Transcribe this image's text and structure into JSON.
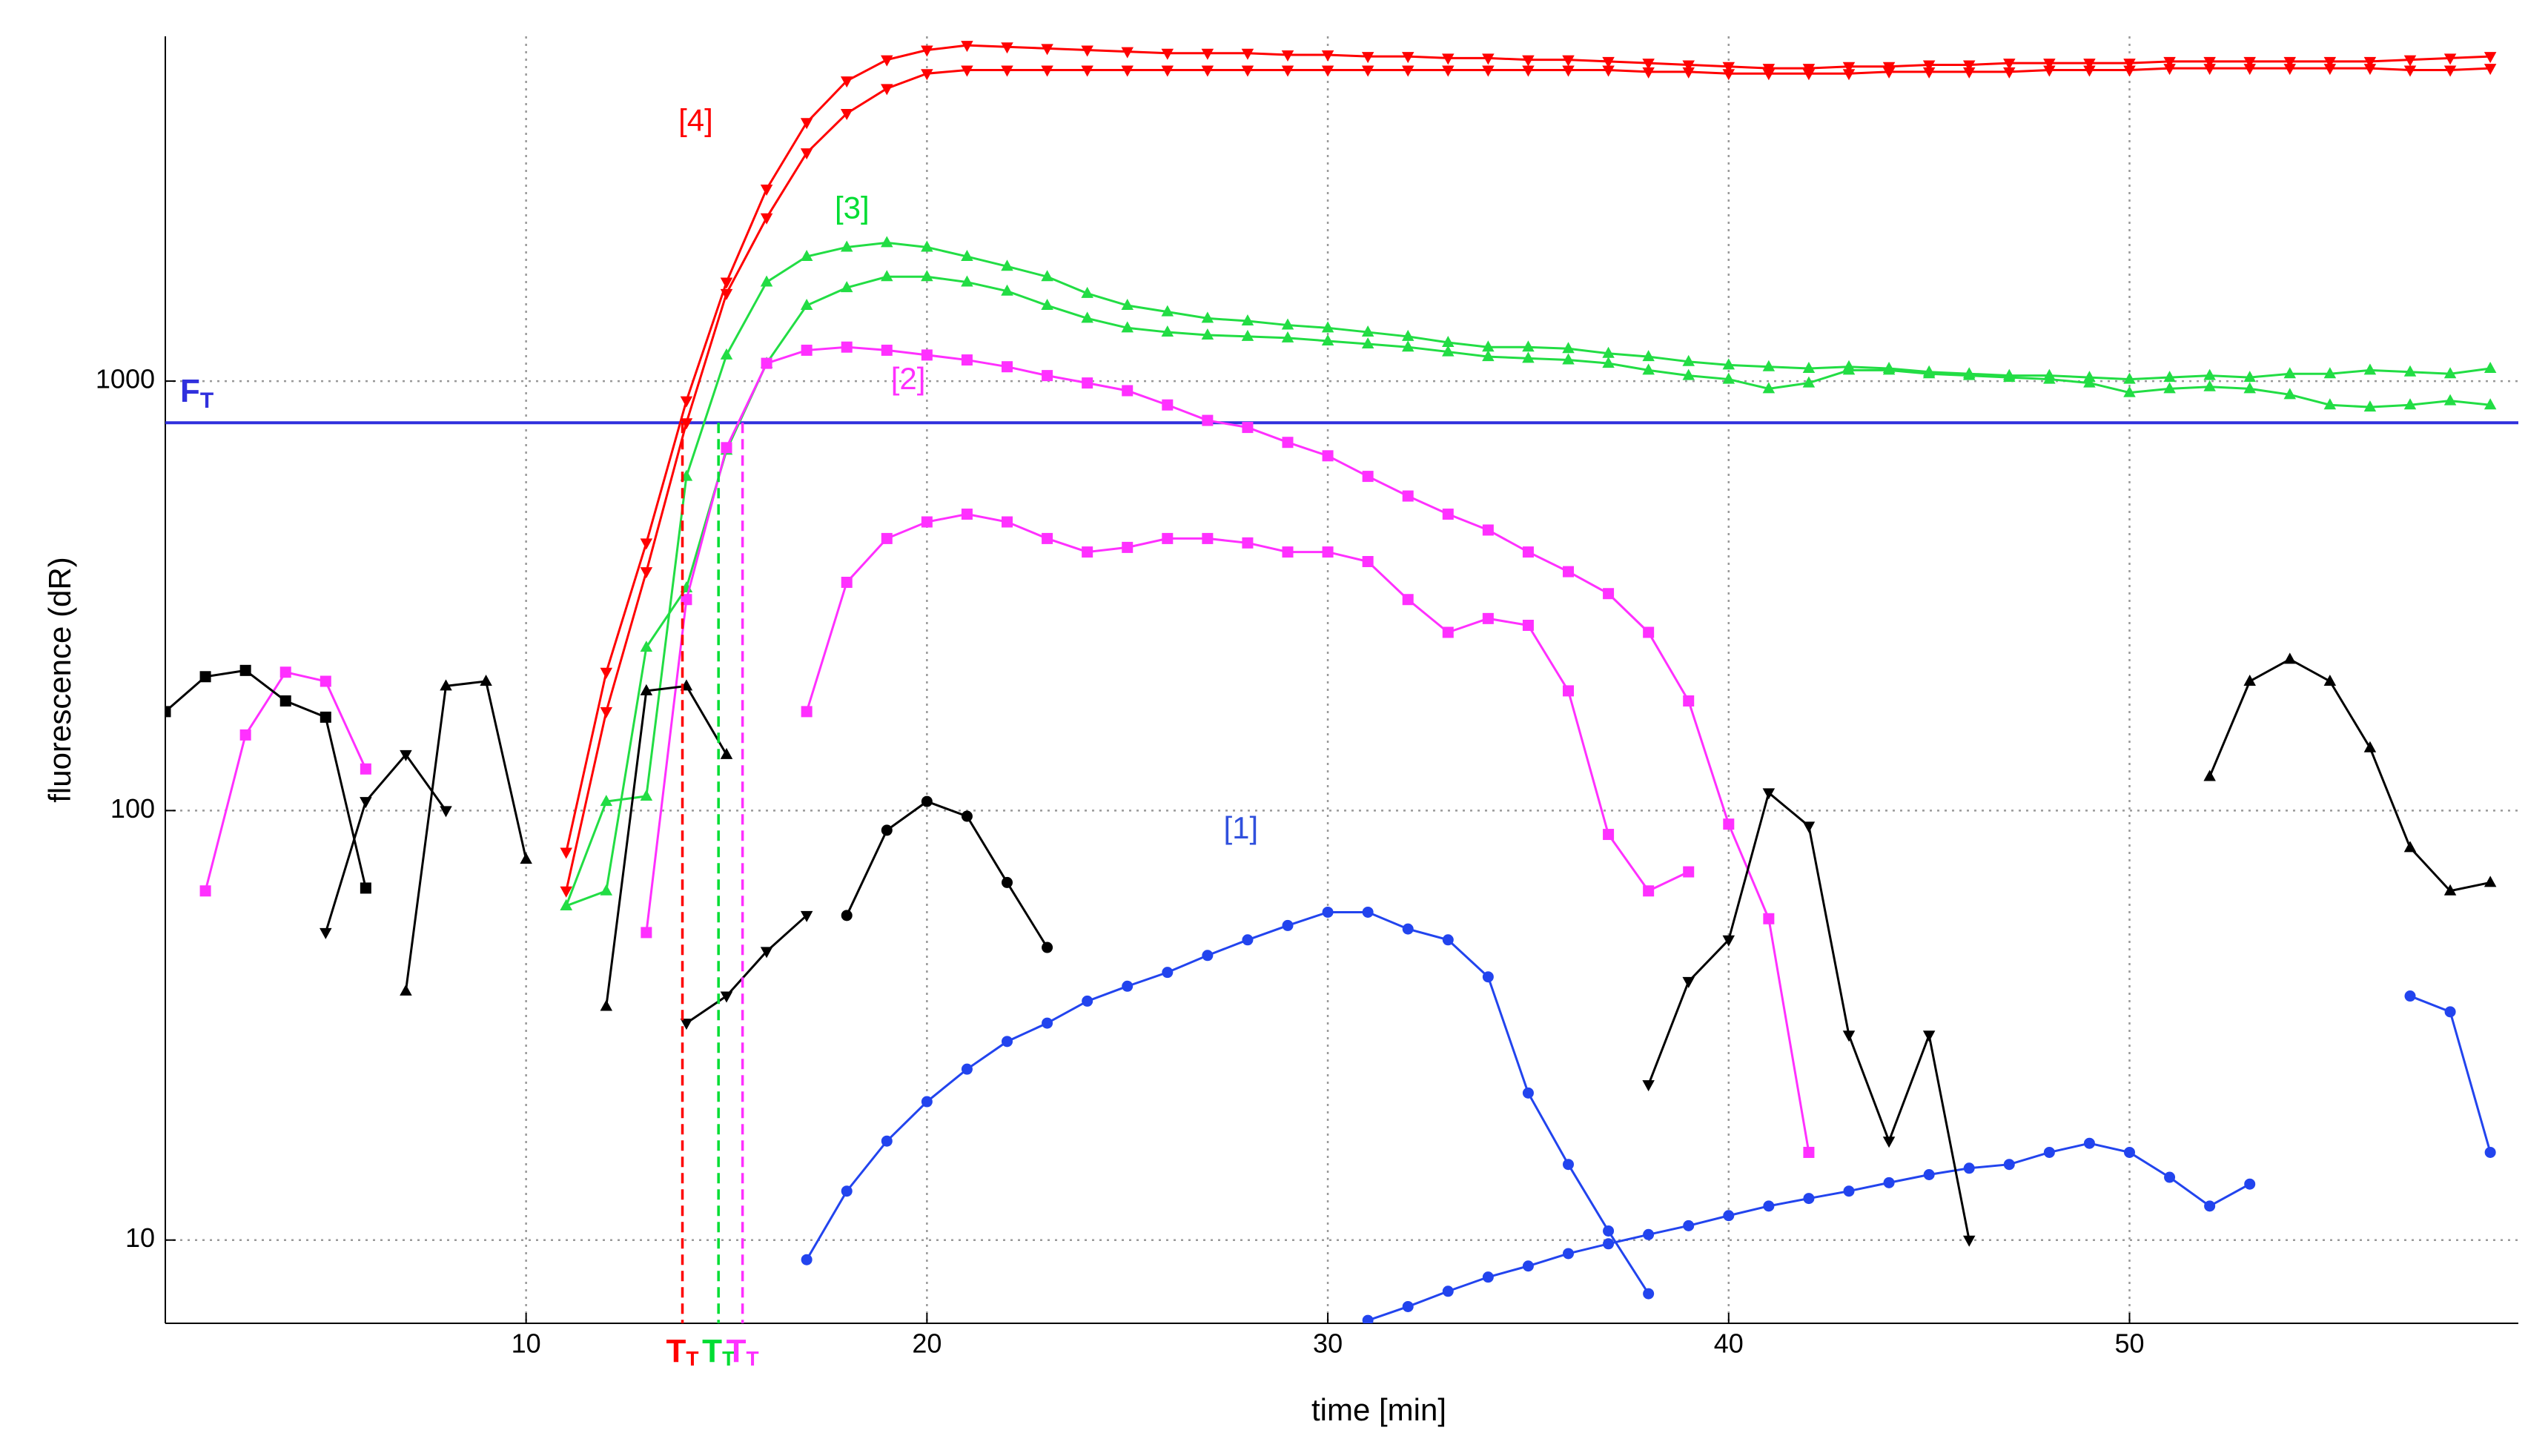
{
  "chart_data": {
    "type": "line",
    "log_y": true,
    "grid": true,
    "xlabel": "time [min]",
    "ylabel": "fluorescence (dR)",
    "xlim": [
      1,
      59.7
    ],
    "ylim": [
      6.4,
      6350
    ],
    "xticks": [
      10,
      20,
      30,
      40,
      50
    ],
    "yticks": [
      10,
      100,
      1000
    ],
    "threshold": {
      "value": 800,
      "label": "F",
      "subscript": "T",
      "color": "#3030dd"
    },
    "markers": [
      {
        "x": 13.9,
        "label": "T",
        "subscript": "T",
        "color": "#ff0000"
      },
      {
        "x": 14.8,
        "label": "T",
        "subscript": "T",
        "color": "#00dd33"
      },
      {
        "x": 15.4,
        "label": "T",
        "subscript": "T",
        "color": "#ff30ff"
      }
    ],
    "annotations": [
      {
        "text": "[4]",
        "x": 13.8,
        "y": 4000,
        "color": "#ff0000"
      },
      {
        "text": "[3]",
        "x": 17.7,
        "y": 2500,
        "color": "#00dd33"
      },
      {
        "text": "[2]",
        "x": 19.1,
        "y": 1000,
        "color": "#ff30ff"
      },
      {
        "text": "[1]",
        "x": 27.4,
        "y": 90,
        "color": "#3050dd"
      }
    ],
    "series": [
      {
        "color": "#ff0000",
        "marker": "triangle-down",
        "x": [
          11,
          12,
          13,
          14,
          15,
          16,
          17,
          18,
          19,
          20,
          21,
          22,
          23,
          24,
          25,
          26,
          27,
          28,
          29,
          30,
          31,
          32,
          33,
          34,
          35,
          36,
          37,
          38,
          39,
          40,
          41,
          42,
          43,
          44,
          45,
          46,
          47,
          48,
          49,
          50,
          51,
          52,
          53,
          54,
          55,
          56,
          57,
          58,
          59
        ],
        "values": [
          80,
          210,
          420,
          900,
          1700,
          2800,
          4000,
          5000,
          5600,
          5900,
          6050,
          6000,
          5950,
          5900,
          5850,
          5800,
          5800,
          5800,
          5750,
          5750,
          5700,
          5700,
          5650,
          5650,
          5600,
          5600,
          5550,
          5500,
          5450,
          5400,
          5350,
          5350,
          5400,
          5400,
          5450,
          5450,
          5500,
          5500,
          5500,
          5500,
          5550,
          5550,
          5550,
          5550,
          5550,
          5550,
          5600,
          5650,
          5700
        ]
      },
      {
        "color": "#ff0000",
        "marker": "triangle-down",
        "x": [
          11,
          12,
          13,
          14,
          15,
          16,
          17,
          18,
          19,
          20,
          21,
          22,
          23,
          24,
          25,
          26,
          27,
          28,
          29,
          30,
          31,
          32,
          33,
          34,
          35,
          36,
          37,
          38,
          39,
          40,
          41,
          42,
          43,
          44,
          45,
          46,
          47,
          48,
          49,
          50,
          51,
          52,
          53,
          54,
          55,
          56,
          57,
          58,
          59
        ],
        "values": [
          65,
          170,
          360,
          800,
          1600,
          2400,
          3400,
          4200,
          4800,
          5200,
          5300,
          5300,
          5300,
          5300,
          5300,
          5300,
          5300,
          5300,
          5300,
          5300,
          5300,
          5300,
          5300,
          5300,
          5300,
          5300,
          5300,
          5250,
          5250,
          5200,
          5200,
          5200,
          5200,
          5250,
          5250,
          5250,
          5250,
          5300,
          5300,
          5300,
          5350,
          5350,
          5350,
          5350,
          5350,
          5350,
          5300,
          5300,
          5350
        ]
      },
      {
        "color": "#22dd44",
        "marker": "triangle-up",
        "x": [
          11,
          12,
          13,
          14,
          15,
          16,
          17,
          18,
          19,
          20,
          21,
          22,
          23,
          24,
          25,
          26,
          27,
          28,
          29,
          30,
          31,
          32,
          33,
          34,
          35,
          36,
          37,
          38,
          39,
          40,
          41,
          42,
          43,
          44,
          45,
          46,
          47,
          48,
          49,
          50,
          51,
          52,
          53,
          54,
          55,
          56,
          57,
          58,
          59
        ],
        "values": [
          60,
          105,
          108,
          600,
          1150,
          1700,
          1950,
          2050,
          2100,
          2050,
          1950,
          1850,
          1750,
          1600,
          1500,
          1450,
          1400,
          1380,
          1350,
          1330,
          1300,
          1270,
          1230,
          1200,
          1200,
          1190,
          1160,
          1140,
          1110,
          1090,
          1080,
          1070,
          1080,
          1070,
          1050,
          1040,
          1030,
          1030,
          1020,
          1010,
          1020,
          1030,
          1020,
          1040,
          1040,
          1060,
          1050,
          1040,
          1070
        ]
      },
      {
        "color": "#22dd44",
        "marker": "triangle-up",
        "x": [
          11,
          12,
          13,
          14,
          15,
          16,
          17,
          18,
          19,
          20,
          21,
          22,
          23,
          24,
          25,
          26,
          27,
          28,
          29,
          30,
          31,
          32,
          33,
          34,
          35,
          36,
          37,
          38,
          39,
          40,
          41,
          42,
          43,
          44,
          45,
          46,
          47,
          48,
          49,
          50,
          51,
          52,
          53,
          54,
          55,
          56,
          57,
          58,
          59
        ],
        "values": [
          60,
          65,
          240,
          330,
          690,
          1100,
          1500,
          1650,
          1750,
          1750,
          1700,
          1620,
          1500,
          1400,
          1330,
          1300,
          1280,
          1270,
          1260,
          1240,
          1220,
          1200,
          1170,
          1140,
          1130,
          1120,
          1100,
          1060,
          1030,
          1010,
          960,
          990,
          1060,
          1060,
          1040,
          1030,
          1020,
          1010,
          990,
          940,
          960,
          970,
          960,
          930,
          880,
          870,
          880,
          900,
          880
        ]
      },
      {
        "color": "#ff30ff",
        "marker": "square",
        "x": [
          13,
          14,
          15,
          16,
          17,
          18,
          19,
          20,
          21,
          22,
          23,
          24,
          25,
          26,
          27,
          28,
          29,
          30,
          31,
          32,
          33,
          34,
          35,
          36,
          37,
          38,
          39,
          40,
          41,
          42
        ],
        "values": [
          52,
          310,
          700,
          1100,
          1180,
          1200,
          1180,
          1150,
          1120,
          1080,
          1030,
          990,
          950,
          880,
          810,
          780,
          720,
          670,
          600,
          540,
          490,
          450,
          400,
          360,
          320,
          260,
          180,
          93,
          56,
          16
        ]
      },
      {
        "color": "#ff30ff",
        "marker": "square",
        "x": [
          2,
          3,
          4,
          5,
          6,
          null,
          17,
          18,
          19,
          20,
          21,
          22,
          23,
          24,
          25,
          26,
          27,
          28,
          29,
          30,
          31,
          32,
          33,
          34,
          35,
          36,
          37,
          38,
          39
        ],
        "values": [
          65,
          150,
          210,
          200,
          125,
          null,
          170,
          340,
          430,
          470,
          490,
          470,
          430,
          400,
          410,
          430,
          430,
          420,
          400,
          400,
          380,
          310,
          260,
          280,
          270,
          190,
          88,
          65,
          72
        ]
      },
      {
        "color": "#2244ee",
        "marker": "circle",
        "x": [
          17,
          18,
          19,
          20,
          21,
          22,
          23,
          24,
          25,
          26,
          27,
          28,
          29,
          30,
          31,
          32,
          33,
          34,
          35,
          36,
          37,
          38
        ],
        "values": [
          9,
          13,
          17,
          21,
          25,
          29,
          32,
          36,
          39,
          42,
          46,
          50,
          54,
          58,
          58,
          53,
          50,
          41,
          22,
          15,
          10.5,
          7.5
        ]
      },
      {
        "color": "#2244ee",
        "marker": "circle",
        "x": [
          31,
          32,
          33,
          34,
          35,
          36,
          37,
          38,
          39,
          40,
          41,
          42,
          43,
          44,
          45,
          46,
          47,
          48,
          49,
          50,
          51,
          52,
          53,
          null,
          57,
          58,
          59
        ],
        "values": [
          6.5,
          7,
          7.6,
          8.2,
          8.7,
          9.3,
          9.8,
          10.3,
          10.8,
          11.4,
          12,
          12.5,
          13,
          13.6,
          14.2,
          14.7,
          15,
          16,
          16.8,
          16,
          14,
          12,
          13.5,
          null,
          37,
          34,
          16
        ]
      },
      {
        "color": "#000000",
        "marker": "square",
        "x": [
          1,
          2,
          3,
          4,
          5,
          6
        ],
        "values": [
          170,
          205,
          212,
          180,
          165,
          66
        ]
      },
      {
        "color": "#000000",
        "marker": "triangle-up",
        "x": [
          7,
          8,
          9,
          10
        ],
        "values": [
          38,
          195,
          200,
          77
        ]
      },
      {
        "color": "#000000",
        "marker": "triangle-down",
        "x": [
          5,
          6,
          7,
          8
        ],
        "values": [
          52,
          105,
          135,
          100
        ]
      },
      {
        "color": "#000000",
        "marker": "triangle-up",
        "x": [
          12,
          13,
          14,
          15
        ],
        "values": [
          35,
          190,
          195,
          135
        ]
      },
      {
        "color": "#000000",
        "marker": "circle",
        "x": [
          18,
          19,
          20,
          21,
          22,
          23
        ],
        "values": [
          57,
          90,
          105,
          97,
          68,
          48
        ]
      },
      {
        "color": "#000000",
        "marker": "triangle-down",
        "x": [
          14,
          15,
          16,
          17
        ],
        "values": [
          32,
          37,
          47,
          57
        ]
      },
      {
        "color": "#000000",
        "marker": "triangle-up",
        "x": [
          52,
          53,
          54,
          55,
          56,
          57,
          58,
          59
        ],
        "values": [
          120,
          200,
          225,
          200,
          140,
          82,
          65,
          68
        ]
      },
      {
        "color": "#000000",
        "marker": "triangle-down",
        "x": [
          38,
          39,
          40,
          41,
          42,
          43,
          44,
          45,
          46
        ],
        "values": [
          23,
          40,
          50,
          110,
          92,
          30,
          17,
          30,
          10
        ]
      }
    ]
  }
}
